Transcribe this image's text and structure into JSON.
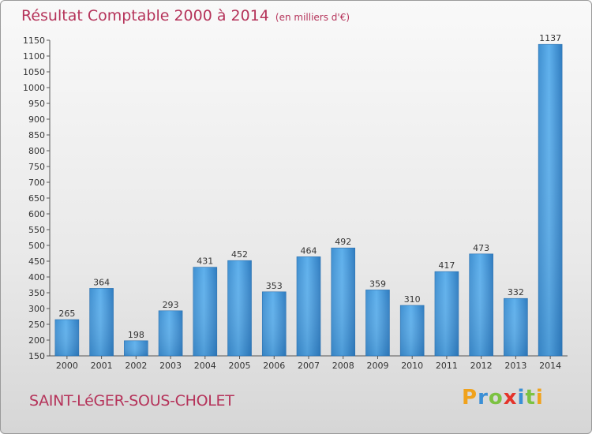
{
  "chart_data": {
    "type": "bar",
    "title": "Résultat Comptable 2000 à 2014",
    "subtitle": "(en milliers d'€)",
    "categories": [
      "2000",
      "2001",
      "2002",
      "2003",
      "2004",
      "2005",
      "2006",
      "2007",
      "2008",
      "2009",
      "2010",
      "2011",
      "2012",
      "2013",
      "2014"
    ],
    "values": [
      265,
      364,
      198,
      293,
      431,
      452,
      353,
      464,
      492,
      359,
      310,
      417,
      473,
      332,
      1137
    ],
    "ylim": [
      150,
      1150
    ],
    "yticks": [
      150,
      200,
      250,
      300,
      350,
      400,
      450,
      500,
      550,
      600,
      650,
      700,
      750,
      800,
      850,
      900,
      950,
      1000,
      1050,
      1100,
      1150
    ],
    "xlabel": "",
    "ylabel": "",
    "grid": false,
    "bar_color": "#4a9fe0"
  },
  "commune": "SAINT-LéGER-SOUS-CHOLET",
  "logo": {
    "p": "P",
    "r": "r",
    "o": "o",
    "x": "x",
    "i1": "i",
    "t": "t",
    "i2": "i"
  }
}
